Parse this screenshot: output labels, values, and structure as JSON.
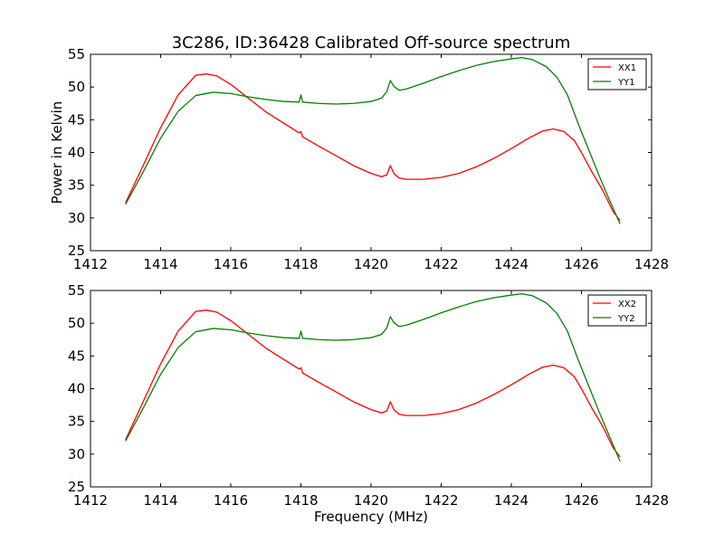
{
  "title": "3C286, ID:36428 Calibrated Off-source spectrum",
  "chart_data": [
    {
      "type": "line",
      "title": "3C286, ID:36428 Calibrated Off-source spectrum",
      "xlabel": "",
      "ylabel": "Power in Kelvin",
      "xlim": [
        1412,
        1428
      ],
      "ylim": [
        25,
        55
      ],
      "x_ticks": [
        1412,
        1414,
        1416,
        1418,
        1420,
        1422,
        1424,
        1426,
        1428
      ],
      "y_ticks": [
        25,
        30,
        35,
        40,
        45,
        50,
        55
      ],
      "grid": false,
      "legend_position": "top-right",
      "series": [
        {
          "name": "XX1",
          "color": "#ff0000",
          "points": [
            [
              1413.0,
              32.3
            ],
            [
              1413.5,
              38.0
            ],
            [
              1414.0,
              43.8
            ],
            [
              1414.5,
              48.8
            ],
            [
              1415.0,
              51.8
            ],
            [
              1415.3,
              52.0
            ],
            [
              1415.6,
              51.7
            ],
            [
              1416.0,
              50.4
            ],
            [
              1416.5,
              48.3
            ],
            [
              1417.0,
              46.2
            ],
            [
              1417.5,
              44.5
            ],
            [
              1417.95,
              43.0
            ],
            [
              1418.0,
              43.2
            ],
            [
              1418.05,
              42.4
            ],
            [
              1418.5,
              41.0
            ],
            [
              1419.0,
              39.5
            ],
            [
              1419.5,
              38.0
            ],
            [
              1420.0,
              36.8
            ],
            [
              1420.3,
              36.3
            ],
            [
              1420.45,
              36.6
            ],
            [
              1420.55,
              38.0
            ],
            [
              1420.65,
              36.8
            ],
            [
              1420.8,
              36.1
            ],
            [
              1421.0,
              35.9
            ],
            [
              1421.5,
              35.9
            ],
            [
              1422.0,
              36.2
            ],
            [
              1422.5,
              36.8
            ],
            [
              1423.0,
              37.8
            ],
            [
              1423.5,
              39.1
            ],
            [
              1424.0,
              40.6
            ],
            [
              1424.5,
              42.2
            ],
            [
              1424.9,
              43.3
            ],
            [
              1425.2,
              43.6
            ],
            [
              1425.5,
              43.2
            ],
            [
              1425.8,
              41.8
            ],
            [
              1426.0,
              40.0
            ],
            [
              1426.3,
              37.0
            ],
            [
              1426.6,
              34.3
            ],
            [
              1426.9,
              31.0
            ],
            [
              1427.1,
              29.6
            ]
          ]
        },
        {
          "name": "YY1",
          "color": "#008000",
          "points": [
            [
              1413.0,
              32.1
            ],
            [
              1413.5,
              37.0
            ],
            [
              1414.0,
              42.2
            ],
            [
              1414.5,
              46.3
            ],
            [
              1415.0,
              48.7
            ],
            [
              1415.5,
              49.2
            ],
            [
              1416.0,
              49.0
            ],
            [
              1416.5,
              48.5
            ],
            [
              1417.0,
              48.1
            ],
            [
              1417.5,
              47.8
            ],
            [
              1417.95,
              47.7
            ],
            [
              1418.0,
              48.8
            ],
            [
              1418.05,
              47.7
            ],
            [
              1418.5,
              47.5
            ],
            [
              1419.0,
              47.4
            ],
            [
              1419.5,
              47.5
            ],
            [
              1420.0,
              47.8
            ],
            [
              1420.3,
              48.3
            ],
            [
              1420.45,
              49.3
            ],
            [
              1420.55,
              51.0
            ],
            [
              1420.65,
              50.1
            ],
            [
              1420.8,
              49.5
            ],
            [
              1421.0,
              49.7
            ],
            [
              1421.5,
              50.6
            ],
            [
              1422.0,
              51.6
            ],
            [
              1422.5,
              52.5
            ],
            [
              1423.0,
              53.3
            ],
            [
              1423.5,
              53.9
            ],
            [
              1424.0,
              54.3
            ],
            [
              1424.3,
              54.5
            ],
            [
              1424.6,
              54.2
            ],
            [
              1425.0,
              53.1
            ],
            [
              1425.3,
              51.5
            ],
            [
              1425.6,
              48.8
            ],
            [
              1425.9,
              44.5
            ],
            [
              1426.2,
              40.5
            ],
            [
              1426.5,
              36.5
            ],
            [
              1426.8,
              32.7
            ],
            [
              1427.1,
              29.1
            ]
          ]
        }
      ]
    },
    {
      "type": "line",
      "title": "",
      "xlabel": "Frequency (MHz)",
      "ylabel": "",
      "xlim": [
        1412,
        1428
      ],
      "ylim": [
        25,
        55
      ],
      "x_ticks": [
        1412,
        1414,
        1416,
        1418,
        1420,
        1422,
        1424,
        1426,
        1428
      ],
      "y_ticks": [
        25,
        30,
        35,
        40,
        45,
        50,
        55
      ],
      "grid": false,
      "legend_position": "top-right",
      "series": [
        {
          "name": "XX2",
          "color": "#ff0000",
          "points": [
            [
              1413.0,
              32.2
            ],
            [
              1413.5,
              38.0
            ],
            [
              1414.0,
              43.8
            ],
            [
              1414.5,
              48.8
            ],
            [
              1415.0,
              51.8
            ],
            [
              1415.3,
              52.0
            ],
            [
              1415.6,
              51.7
            ],
            [
              1416.0,
              50.4
            ],
            [
              1416.5,
              48.3
            ],
            [
              1417.0,
              46.2
            ],
            [
              1417.5,
              44.5
            ],
            [
              1417.95,
              43.0
            ],
            [
              1418.0,
              43.2
            ],
            [
              1418.05,
              42.4
            ],
            [
              1418.5,
              41.0
            ],
            [
              1419.0,
              39.5
            ],
            [
              1419.5,
              38.0
            ],
            [
              1420.0,
              36.8
            ],
            [
              1420.3,
              36.3
            ],
            [
              1420.45,
              36.6
            ],
            [
              1420.55,
              38.0
            ],
            [
              1420.65,
              36.8
            ],
            [
              1420.8,
              36.1
            ],
            [
              1421.0,
              35.9
            ],
            [
              1421.5,
              35.9
            ],
            [
              1422.0,
              36.2
            ],
            [
              1422.5,
              36.8
            ],
            [
              1423.0,
              37.8
            ],
            [
              1423.5,
              39.1
            ],
            [
              1424.0,
              40.6
            ],
            [
              1424.5,
              42.2
            ],
            [
              1424.9,
              43.3
            ],
            [
              1425.2,
              43.6
            ],
            [
              1425.5,
              43.2
            ],
            [
              1425.8,
              41.8
            ],
            [
              1426.0,
              40.0
            ],
            [
              1426.3,
              37.0
            ],
            [
              1426.6,
              34.3
            ],
            [
              1426.9,
              31.0
            ],
            [
              1427.1,
              29.6
            ]
          ]
        },
        {
          "name": "YY2",
          "color": "#008000",
          "points": [
            [
              1413.0,
              32.0
            ],
            [
              1413.5,
              37.0
            ],
            [
              1414.0,
              42.2
            ],
            [
              1414.5,
              46.3
            ],
            [
              1415.0,
              48.7
            ],
            [
              1415.5,
              49.2
            ],
            [
              1416.0,
              49.0
            ],
            [
              1416.5,
              48.5
            ],
            [
              1417.0,
              48.1
            ],
            [
              1417.5,
              47.8
            ],
            [
              1417.95,
              47.7
            ],
            [
              1418.0,
              48.8
            ],
            [
              1418.05,
              47.7
            ],
            [
              1418.5,
              47.5
            ],
            [
              1419.0,
              47.4
            ],
            [
              1419.5,
              47.5
            ],
            [
              1420.0,
              47.8
            ],
            [
              1420.3,
              48.3
            ],
            [
              1420.45,
              49.3
            ],
            [
              1420.55,
              51.0
            ],
            [
              1420.65,
              50.1
            ],
            [
              1420.8,
              49.5
            ],
            [
              1421.0,
              49.7
            ],
            [
              1421.5,
              50.6
            ],
            [
              1422.0,
              51.6
            ],
            [
              1422.5,
              52.5
            ],
            [
              1423.0,
              53.3
            ],
            [
              1423.5,
              53.9
            ],
            [
              1424.0,
              54.3
            ],
            [
              1424.3,
              54.5
            ],
            [
              1424.6,
              54.2
            ],
            [
              1425.0,
              53.1
            ],
            [
              1425.3,
              51.5
            ],
            [
              1425.6,
              48.8
            ],
            [
              1425.9,
              44.5
            ],
            [
              1426.2,
              40.5
            ],
            [
              1426.5,
              36.5
            ],
            [
              1426.8,
              32.7
            ],
            [
              1427.1,
              28.9
            ]
          ]
        }
      ]
    }
  ]
}
